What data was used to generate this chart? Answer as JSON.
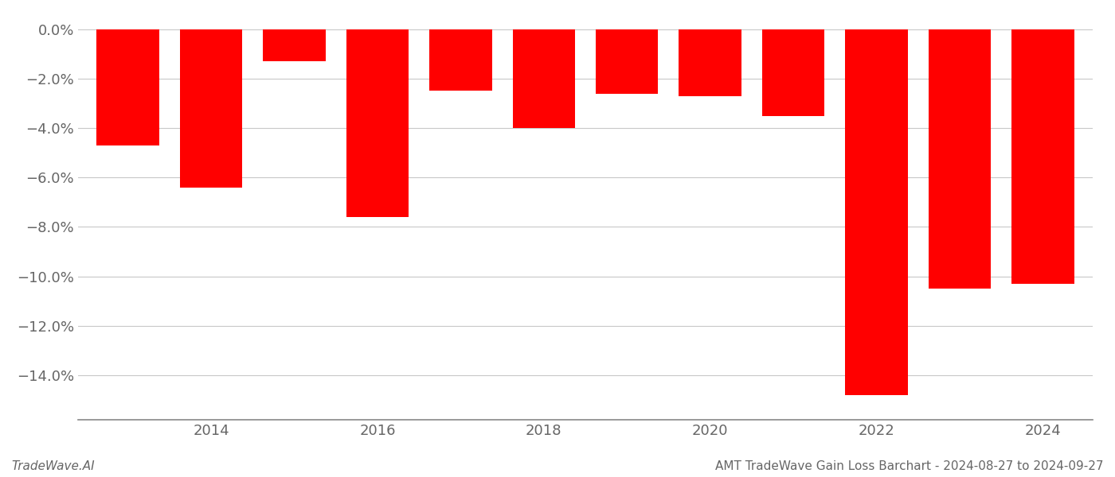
{
  "years": [
    2013,
    2014,
    2015,
    2016,
    2017,
    2018,
    2019,
    2020,
    2021,
    2022,
    2023,
    2024
  ],
  "values": [
    -4.7,
    -6.4,
    -1.3,
    -7.6,
    -2.5,
    -4.0,
    -2.6,
    -2.7,
    -3.5,
    -14.8,
    -10.5,
    -10.3
  ],
  "bar_color": "#ff0000",
  "background_color": "#ffffff",
  "grid_color": "#c8c8c8",
  "axis_color": "#888888",
  "text_color": "#666666",
  "ylim": [
    -15.8,
    0.6
  ],
  "yticks": [
    0.0,
    -2.0,
    -4.0,
    -6.0,
    -8.0,
    -10.0,
    -12.0,
    -14.0
  ],
  "xticks": [
    2014,
    2016,
    2018,
    2020,
    2022,
    2024
  ],
  "footer_left": "TradeWave.AI",
  "footer_right": "AMT TradeWave Gain Loss Barchart - 2024-08-27 to 2024-09-27",
  "tick_fontsize": 13,
  "footer_fontsize": 11,
  "bar_width": 0.75
}
